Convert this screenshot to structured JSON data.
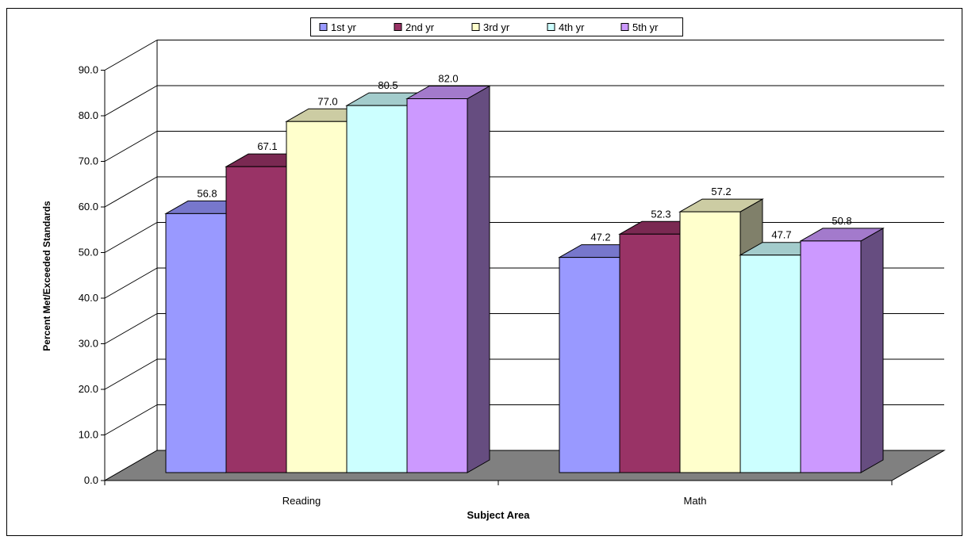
{
  "chart_data": {
    "type": "bar",
    "style": "3d-clustered-column",
    "categories": [
      "Reading",
      "Math"
    ],
    "series": [
      {
        "name": "1st yr",
        "values": [
          56.8,
          47.2
        ],
        "color": "#9999FF",
        "top_color": "#7777CC",
        "side_color": "#6B6BB3"
      },
      {
        "name": "2nd yr",
        "values": [
          67.1,
          52.3
        ],
        "color": "#993366",
        "top_color": "#7A2952",
        "side_color": "#6B2447"
      },
      {
        "name": "3rd yr",
        "values": [
          77.0,
          57.2
        ],
        "color": "#FFFFCC",
        "top_color": "#CCCCA3",
        "side_color": "#80806A"
      },
      {
        "name": "4th yr",
        "values": [
          80.5,
          47.7
        ],
        "color": "#CCFFFF",
        "top_color": "#A3CCCC",
        "side_color": "#8FB3B3"
      },
      {
        "name": "5th yr",
        "values": [
          82.0,
          50.8
        ],
        "color": "#CC99FF",
        "top_color": "#A37ACC",
        "side_color": "#664D80"
      }
    ],
    "value_labels": [
      "56.8",
      "67.1",
      "77.0",
      "80.5",
      "82.0",
      "47.2",
      "52.3",
      "57.2",
      "47.7",
      "50.8"
    ],
    "yticks": [
      "0.0",
      "10.0",
      "20.0",
      "30.0",
      "40.0",
      "50.0",
      "60.0",
      "70.0",
      "80.0",
      "90.0"
    ],
    "ylim": [
      0,
      90
    ],
    "ylabel": "Percent Met/Exceeded Standards",
    "xlabel": "Subject Area",
    "title": "",
    "legend_position": "top",
    "grid": true,
    "floor_color": "#808080"
  }
}
